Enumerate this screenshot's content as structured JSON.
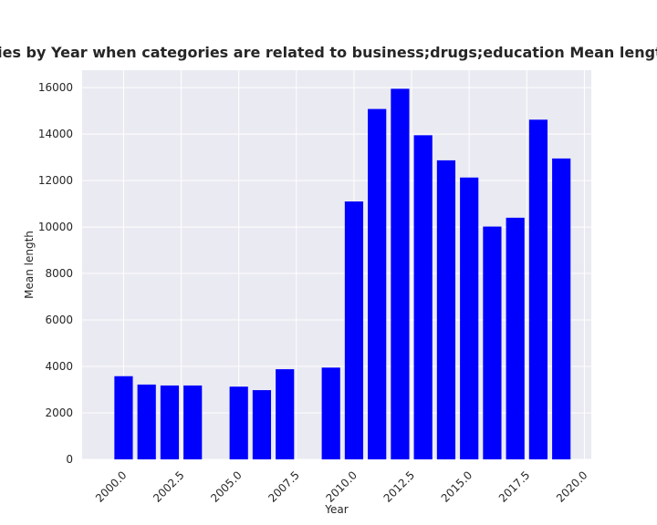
{
  "chart_data": {
    "type": "bar",
    "title": "Mean length in privacy policies by Year when categories are related to business;drugs;education Mean length in privacy policies by Year",
    "xlabel": "Year",
    "ylabel": "Mean length",
    "x": [
      2000,
      2001,
      2002,
      2003,
      2005,
      2006,
      2007,
      2009,
      2010,
      2011,
      2012,
      2013,
      2014,
      2015,
      2016,
      2017,
      2018,
      2019
    ],
    "values": [
      3580,
      3220,
      3180,
      3180,
      3130,
      2980,
      3880,
      3950,
      11100,
      15080,
      15950,
      13950,
      12870,
      12130,
      10020,
      10400,
      14620,
      12950
    ],
    "xlim": [
      1998.2,
      2020.3
    ],
    "ylim": [
      0,
      16750
    ],
    "xticks": [
      2000.0,
      2002.5,
      2005.0,
      2007.5,
      2010.0,
      2012.5,
      2015.0,
      2017.5,
      2020.0
    ],
    "xtick_labels": [
      "2000.0",
      "2002.5",
      "2005.0",
      "2007.5",
      "2010.0",
      "2012.5",
      "2015.0",
      "2017.5",
      "2020.0"
    ],
    "yticks": [
      0,
      2000,
      4000,
      6000,
      8000,
      10000,
      12000,
      14000,
      16000
    ],
    "ytick_labels": [
      "0",
      "2000",
      "4000",
      "6000",
      "8000",
      "10000",
      "12000",
      "14000",
      "16000"
    ],
    "bar_color": "#0000ff",
    "background_color": "#eaeaf2",
    "grid": true,
    "grid_color": "#ffffff"
  }
}
